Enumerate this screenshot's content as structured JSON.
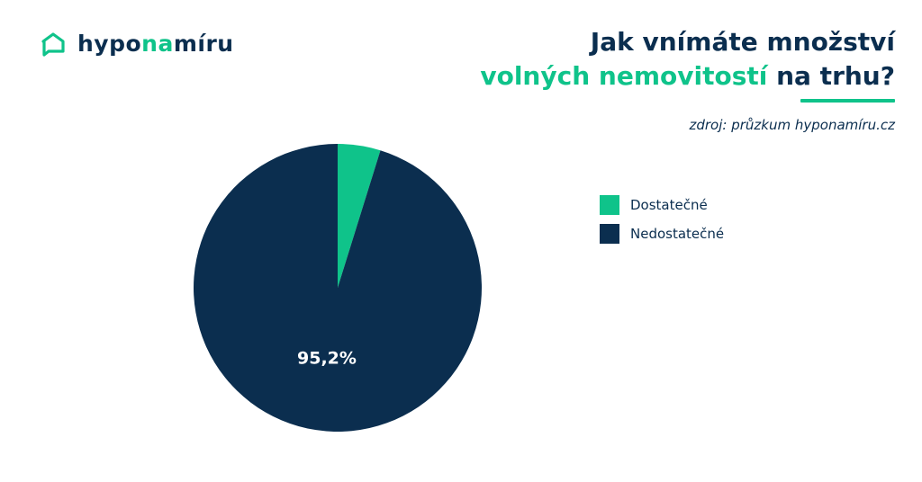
{
  "brand": {
    "name_prefix": "hypo",
    "name_accent": "na",
    "name_suffix": "míru",
    "icon": "house-chat-icon"
  },
  "title": {
    "line1": "Jak vnímáte množství",
    "line2_accent": "volných nemovitostí",
    "line2_rest": " na trhu?"
  },
  "source": "zdroj: průzkum hyponamíru.cz",
  "colors": {
    "accent": "#0fc38a",
    "primary": "#0b2e4f"
  },
  "chart_data": {
    "type": "pie",
    "categories": [
      "Dostatečné",
      "Nedostatečné"
    ],
    "values": [
      4.8,
      95.2
    ],
    "colors": [
      "#0fc38a",
      "#0b2e4f"
    ],
    "data_labels": [
      "",
      "95,2%"
    ],
    "legend_position": "right"
  }
}
